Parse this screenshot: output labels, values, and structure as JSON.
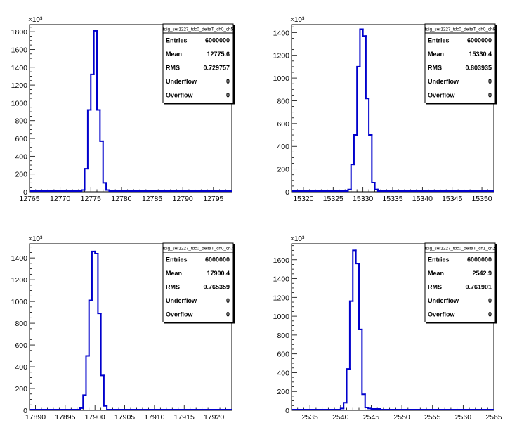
{
  "chart_data": [
    {
      "type": "histogram",
      "exponent_label": "×10³",
      "multiplier": 1000,
      "xlim": [
        12765,
        12798
      ],
      "ylim": [
        0,
        1880
      ],
      "xticks": [
        12765,
        12770,
        12775,
        12780,
        12785,
        12790,
        12795
      ],
      "yticks": [
        0,
        200,
        400,
        600,
        800,
        1000,
        1200,
        1400,
        1600,
        1800
      ],
      "bins": [
        [
          12773.5,
          12774.0,
          20
        ],
        [
          12774.0,
          12774.5,
          260
        ],
        [
          12774.5,
          12775.0,
          920
        ],
        [
          12775.0,
          12775.5,
          1320
        ],
        [
          12775.5,
          12776.0,
          1810
        ],
        [
          12776.0,
          12776.5,
          920
        ],
        [
          12776.5,
          12777.0,
          570
        ],
        [
          12777.0,
          12777.5,
          100
        ],
        [
          12777.5,
          12778.0,
          20
        ]
      ],
      "stats": {
        "title": "tdig_ser1227_tdc0_deltaT_ch0_ch5",
        "rows": [
          {
            "label": "Entries",
            "value": "6000000"
          },
          {
            "label": "Mean",
            "value": "12775.6"
          },
          {
            "label": "RMS",
            "value": "0.729757"
          },
          {
            "label": "Underflow",
            "value": "0"
          },
          {
            "label": "Overflow",
            "value": "0"
          }
        ]
      }
    },
    {
      "type": "histogram",
      "exponent_label": "×10³",
      "multiplier": 1000,
      "xlim": [
        15318,
        15352
      ],
      "ylim": [
        0,
        1470
      ],
      "xticks": [
        15320,
        15325,
        15330,
        15335,
        15340,
        15345,
        15350
      ],
      "yticks": [
        0,
        200,
        400,
        600,
        800,
        1000,
        1200,
        1400
      ],
      "bins": [
        [
          15327.5,
          15328.0,
          20
        ],
        [
          15328.0,
          15328.5,
          240
        ],
        [
          15328.5,
          15329.0,
          500
        ],
        [
          15329.0,
          15329.5,
          1100
        ],
        [
          15329.5,
          15330.0,
          1430
        ],
        [
          15330.0,
          15330.5,
          1370
        ],
        [
          15330.5,
          15331.0,
          820
        ],
        [
          15331.0,
          15331.5,
          500
        ],
        [
          15331.5,
          15332.0,
          80
        ],
        [
          15332.0,
          15332.5,
          20
        ]
      ],
      "stats": {
        "title": "tdig_ser1227_tdc0_deltaT_ch0_ch6",
        "rows": [
          {
            "label": "Entries",
            "value": "6000000"
          },
          {
            "label": "Mean",
            "value": "15330.4"
          },
          {
            "label": "RMS",
            "value": "0.803935"
          },
          {
            "label": "Underflow",
            "value": "0"
          },
          {
            "label": "Overflow",
            "value": "0"
          }
        ]
      }
    },
    {
      "type": "histogram",
      "exponent_label": "×10³",
      "multiplier": 1000,
      "xlim": [
        17889,
        17923
      ],
      "ylim": [
        0,
        1530
      ],
      "xticks": [
        17890,
        17895,
        17900,
        17905,
        17910,
        17915,
        17920
      ],
      "yticks": [
        0,
        200,
        400,
        600,
        800,
        1000,
        1200,
        1400
      ],
      "bins": [
        [
          17897.5,
          17898.0,
          20
        ],
        [
          17898.0,
          17898.5,
          140
        ],
        [
          17898.5,
          17899.0,
          500
        ],
        [
          17899.0,
          17899.5,
          1010
        ],
        [
          17899.5,
          17900.0,
          1460
        ],
        [
          17900.0,
          17900.5,
          1440
        ],
        [
          17900.5,
          17901.0,
          890
        ],
        [
          17901.0,
          17901.5,
          320
        ],
        [
          17901.5,
          17902.0,
          40
        ],
        [
          17902.0,
          17902.5,
          5
        ]
      ],
      "stats": {
        "title": "tdig_ser1227_tdc0_deltaT_ch0_ch7",
        "rows": [
          {
            "label": "Entries",
            "value": "6000000"
          },
          {
            "label": "Mean",
            "value": "17900.4"
          },
          {
            "label": "RMS",
            "value": "0.765359"
          },
          {
            "label": "Underflow",
            "value": "0"
          },
          {
            "label": "Overflow",
            "value": "0"
          }
        ]
      }
    },
    {
      "type": "histogram",
      "exponent_label": "×10³",
      "multiplier": 1000,
      "xlim": [
        2532,
        2565
      ],
      "ylim": [
        0,
        1770
      ],
      "xticks": [
        2535,
        2540,
        2545,
        2550,
        2555,
        2560,
        2565
      ],
      "yticks": [
        0,
        200,
        400,
        600,
        800,
        1000,
        1200,
        1400,
        1600
      ],
      "bins": [
        [
          2540.0,
          2540.5,
          20
        ],
        [
          2540.5,
          2541.0,
          80
        ],
        [
          2541.0,
          2541.5,
          440
        ],
        [
          2541.5,
          2542.0,
          1160
        ],
        [
          2542.0,
          2542.5,
          1700
        ],
        [
          2542.5,
          2543.0,
          1560
        ],
        [
          2543.0,
          2543.5,
          860
        ],
        [
          2543.5,
          2544.0,
          170
        ],
        [
          2544.0,
          2544.5,
          30
        ],
        [
          2544.5,
          2545.0,
          20
        ],
        [
          2545.0,
          2546.5,
          15
        ]
      ],
      "stats": {
        "title": "tdig_ser1227_tdc0_deltaT_ch1_ch2",
        "rows": [
          {
            "label": "Entries",
            "value": "6000000"
          },
          {
            "label": "Mean",
            "value": "2542.9"
          },
          {
            "label": "RMS",
            "value": "0.761901"
          },
          {
            "label": "Underflow",
            "value": "0"
          },
          {
            "label": "Overflow",
            "value": "0"
          }
        ]
      }
    }
  ]
}
